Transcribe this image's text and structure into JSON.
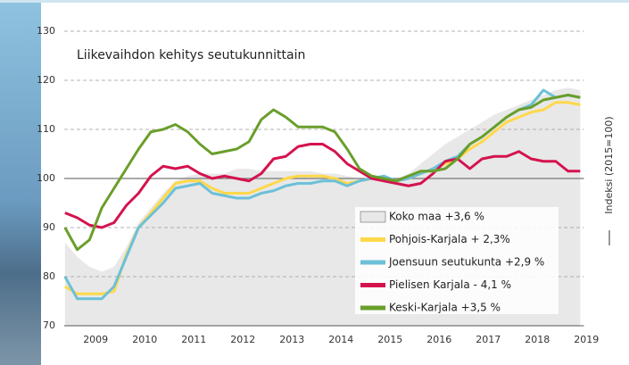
{
  "chart_data": {
    "type": "line",
    "title": "Liikevaihdon kehitys seutukunnittain",
    "y_label": "Indeksi (2015=100)",
    "x": [
      2008.875,
      2009.125,
      2009.375,
      2009.625,
      2009.875,
      2010.125,
      2010.375,
      2010.625,
      2010.875,
      2011.125,
      2011.375,
      2011.625,
      2011.875,
      2012.125,
      2012.375,
      2012.625,
      2012.875,
      2013.125,
      2013.375,
      2013.625,
      2013.875,
      2014.125,
      2014.375,
      2014.625,
      2014.875,
      2015.125,
      2015.375,
      2015.625,
      2015.875,
      2016.125,
      2016.375,
      2016.625,
      2016.875,
      2017.125,
      2017.375,
      2017.625,
      2017.875,
      2018.125,
      2018.375,
      2018.625,
      2018.875,
      2019.125,
      2019.375
    ],
    "series": [
      {
        "name": "Koko maa +3,6 %",
        "type": "area",
        "color": "#e8e8e8",
        "values": [
          87,
          84,
          82,
          81,
          82,
          86,
          91,
          94,
          97,
          99.5,
          100.5,
          101,
          101,
          101,
          102,
          102,
          101.5,
          101.5,
          101.5,
          101.5,
          101.5,
          101,
          101,
          100.5,
          100,
          100,
          100,
          100,
          101,
          103,
          105,
          107,
          108.5,
          110,
          111.5,
          113,
          114,
          115,
          116,
          117,
          118,
          118.5,
          118
        ]
      },
      {
        "name": "Pohjois-Karjala + 2,3%",
        "type": "line",
        "color": "#ffd84a",
        "values": [
          78,
          76.5,
          76.5,
          76.5,
          77,
          84.5,
          90,
          93,
          96,
          99,
          99.5,
          99.5,
          98,
          97,
          97,
          97,
          98,
          99,
          100,
          100.5,
          100.5,
          100.5,
          100,
          99,
          99.5,
          100,
          100,
          99.5,
          100,
          101,
          102,
          103,
          104,
          106,
          107.5,
          109.5,
          111.5,
          112.5,
          113.5,
          114,
          115.5,
          115.5,
          115
        ]
      },
      {
        "name": "Joensuun seutukunta +2,9 %",
        "type": "line",
        "color": "#6cc0d8",
        "values": [
          80,
          75.5,
          75.5,
          75.5,
          78,
          84,
          90,
          92.5,
          95,
          98,
          98.5,
          99,
          97,
          96.5,
          96,
          96,
          97,
          97.5,
          98.5,
          99,
          99,
          99.5,
          99.5,
          98.5,
          99.5,
          100,
          100.5,
          99.5,
          100,
          101,
          102,
          103.5,
          104.5,
          107,
          108.5,
          110.5,
          112.5,
          114,
          115,
          118,
          116.5,
          117,
          116.5
        ]
      },
      {
        "name": "Pielisen Karjala - 4,1 %",
        "type": "line",
        "color": "#d4134e",
        "values": [
          93,
          92,
          90.5,
          90,
          91,
          94.5,
          97,
          100.5,
          102.5,
          102,
          102.5,
          101,
          100,
          100.5,
          100,
          99.5,
          101,
          104,
          104.5,
          106.5,
          107,
          107,
          105.5,
          103,
          101.5,
          100,
          99.5,
          99,
          98.5,
          99,
          101,
          103.5,
          104,
          102,
          104,
          104.5,
          104.5,
          105.5,
          104,
          103.5,
          103.5,
          101.5,
          101.5
        ]
      },
      {
        "name": "Keski-Karjala +3,5 %",
        "type": "line",
        "color": "#6a9e2a",
        "values": [
          90,
          85.5,
          87.5,
          94,
          98,
          102,
          106,
          109.5,
          110,
          111,
          109.5,
          107,
          105,
          105.5,
          106,
          107.5,
          112,
          114,
          112.5,
          110.5,
          110.5,
          110.5,
          109.5,
          106,
          102,
          100.5,
          100,
          99.5,
          100.5,
          101.5,
          101.5,
          102,
          104,
          107,
          108.5,
          110.5,
          112.5,
          114,
          114.5,
          116,
          116.5,
          117,
          116.5
        ]
      }
    ],
    "xlim": [
      2008.86,
      2019.45
    ],
    "xticks": [
      {
        "value": 2009.5,
        "label": "2009"
      },
      {
        "value": 2010.5,
        "label": "2010"
      },
      {
        "value": 2011.5,
        "label": "2011"
      },
      {
        "value": 2012.5,
        "label": "2012"
      },
      {
        "value": 2013.5,
        "label": "2013"
      },
      {
        "value": 2014.5,
        "label": "2014"
      },
      {
        "value": 2015.5,
        "label": "2015"
      },
      {
        "value": 2016.5,
        "label": "2016"
      },
      {
        "value": 2017.5,
        "label": "2017"
      },
      {
        "value": 2018.5,
        "label": "2018"
      },
      {
        "value": 2019.5,
        "label": "2019"
      }
    ],
    "ylim": [
      70,
      130
    ],
    "yticks": [
      70,
      80,
      90,
      100,
      110,
      120,
      130
    ],
    "reference_line": 100,
    "grid": true
  }
}
